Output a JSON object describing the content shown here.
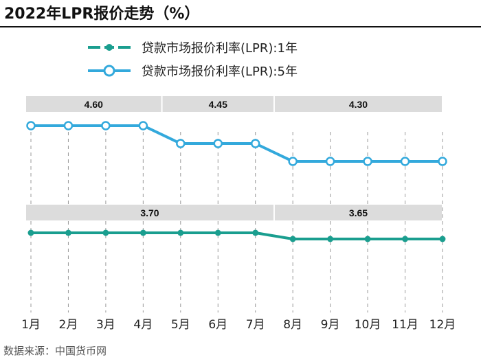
{
  "chart_data": {
    "type": "line",
    "title": "2022年LPR报价走势（%）",
    "source": "数据来源：中国货币网",
    "categories": [
      "1月",
      "2月",
      "3月",
      "4月",
      "5月",
      "6月",
      "7月",
      "8月",
      "9月",
      "10月",
      "11月",
      "12月"
    ],
    "series": [
      {
        "name": "贷款市场报价利率(LPR):1年",
        "color": "#1a9e8f",
        "marker": "filled-dot",
        "values": [
          3.7,
          3.7,
          3.7,
          3.7,
          3.7,
          3.7,
          3.7,
          3.65,
          3.65,
          3.65,
          3.65,
          3.65
        ],
        "bands": [
          {
            "label": "3.70",
            "from": "1月",
            "to": "7月"
          },
          {
            "label": "3.65",
            "from": "8月",
            "to": "12月"
          }
        ]
      },
      {
        "name": "贷款市场报价利率(LPR):5年",
        "color": "#33a9dc",
        "marker": "hollow-circle",
        "values": [
          4.6,
          4.6,
          4.6,
          4.6,
          4.45,
          4.45,
          4.45,
          4.3,
          4.3,
          4.3,
          4.3,
          4.3
        ],
        "bands": [
          {
            "label": "4.60",
            "from": "1月",
            "to": "4月"
          },
          {
            "label": "4.45",
            "from": "5月",
            "to": "7月"
          },
          {
            "label": "4.30",
            "from": "8月",
            "to": "12月"
          }
        ]
      }
    ],
    "legend": "top-center",
    "grid": "vertical-dashed",
    "band_color": "#dcdcdc"
  }
}
